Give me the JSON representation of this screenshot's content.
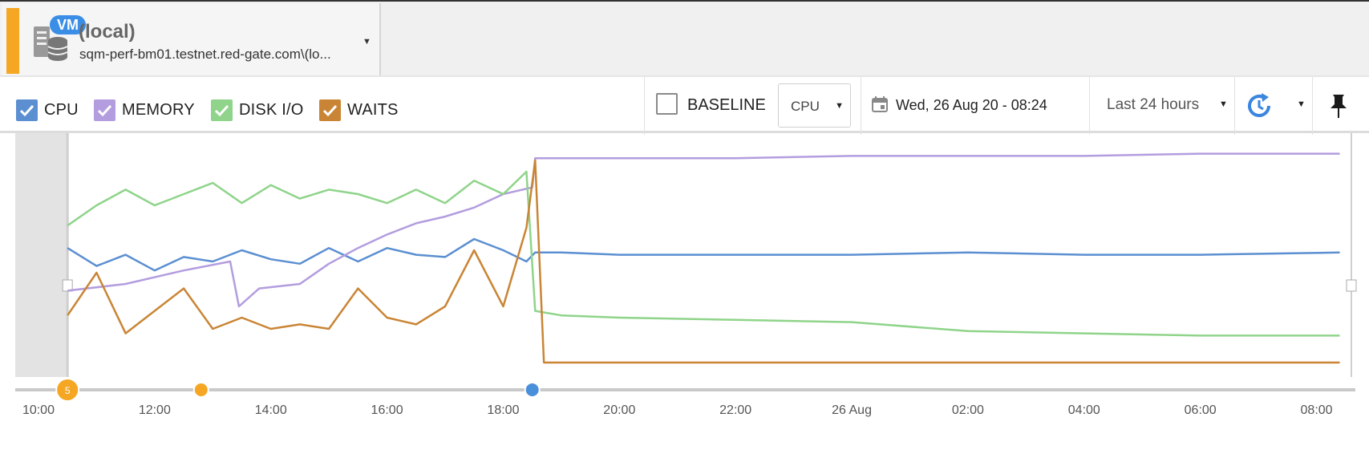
{
  "server": {
    "badge": "VM",
    "title": "(local)",
    "host": "sqm-perf-bm01.testnet.red-gate.com\\(lo...",
    "status_color": "#f5a623",
    "icon": "database-server-icon",
    "dropdown_icon": "caret-down-icon"
  },
  "toolbar": {
    "legend": [
      {
        "label": "CPU",
        "color": "#5b8fd1",
        "checked": true
      },
      {
        "label": "MEMORY",
        "color": "#b39ddf",
        "checked": true
      },
      {
        "label": "DISK I/O",
        "color": "#8fd48a",
        "checked": true
      },
      {
        "label": "WAITS",
        "color": "#c98535",
        "checked": true
      }
    ],
    "baseline": {
      "label": "BASELINE",
      "checked": false
    },
    "metric_select": "CPU",
    "date_label": "Wed, 26 Aug 20 - 08:24",
    "range_label": "Last 24 hours",
    "icons": [
      "calendar-icon",
      "auto-refresh-icon",
      "pin-icon"
    ]
  },
  "chart_data": {
    "type": "line",
    "x_ticks": [
      "10:00",
      "12:00",
      "14:00",
      "16:00",
      "18:00",
      "20:00",
      "22:00",
      "26 Aug",
      "02:00",
      "04:00",
      "06:00",
      "08:00"
    ],
    "x_domain_hours": [
      9.6,
      32.6
    ],
    "series": [
      {
        "name": "CPU",
        "color": "#5b8fd1",
        "segments": [
          [
            10.5,
            0.56
          ],
          [
            11.0,
            0.48
          ],
          [
            11.5,
            0.53
          ],
          [
            12.0,
            0.46
          ],
          [
            12.5,
            0.52
          ],
          [
            13.0,
            0.5
          ],
          [
            13.5,
            0.55
          ],
          [
            14.0,
            0.51
          ],
          [
            14.5,
            0.49
          ],
          [
            15.0,
            0.56
          ],
          [
            15.5,
            0.5
          ],
          [
            16.0,
            0.56
          ],
          [
            16.5,
            0.53
          ],
          [
            17.0,
            0.52
          ],
          [
            17.5,
            0.6
          ],
          [
            18.0,
            0.55
          ],
          [
            18.4,
            0.5
          ],
          [
            18.55,
            0.54
          ],
          [
            19.0,
            0.54
          ],
          [
            20.0,
            0.53
          ],
          [
            22.0,
            0.53
          ],
          [
            24.0,
            0.53
          ],
          [
            26.0,
            0.54
          ],
          [
            28.0,
            0.53
          ],
          [
            30.0,
            0.53
          ],
          [
            32.4,
            0.54
          ]
        ]
      },
      {
        "name": "MEMORY",
        "color": "#b39ddf",
        "segments": [
          [
            10.5,
            0.37
          ],
          [
            11.5,
            0.4
          ],
          [
            12.5,
            0.46
          ],
          [
            13.3,
            0.5
          ],
          [
            13.45,
            0.3
          ],
          [
            13.8,
            0.38
          ],
          [
            14.5,
            0.4
          ],
          [
            15.0,
            0.49
          ],
          [
            15.5,
            0.56
          ],
          [
            16.0,
            0.62
          ],
          [
            16.5,
            0.67
          ],
          [
            17.0,
            0.7
          ],
          [
            17.5,
            0.74
          ],
          [
            18.0,
            0.8
          ],
          [
            18.5,
            0.83
          ],
          [
            18.55,
            0.96
          ],
          [
            19.0,
            0.96
          ],
          [
            22.0,
            0.96
          ],
          [
            24.0,
            0.97
          ],
          [
            26.0,
            0.97
          ],
          [
            28.0,
            0.97
          ],
          [
            30.0,
            0.98
          ],
          [
            32.4,
            0.98
          ]
        ]
      },
      {
        "name": "DISK I/O",
        "color": "#8fd48a",
        "segments": [
          [
            10.5,
            0.66
          ],
          [
            11.0,
            0.75
          ],
          [
            11.5,
            0.82
          ],
          [
            12.0,
            0.75
          ],
          [
            12.5,
            0.8
          ],
          [
            13.0,
            0.85
          ],
          [
            13.5,
            0.76
          ],
          [
            14.0,
            0.84
          ],
          [
            14.5,
            0.78
          ],
          [
            15.0,
            0.82
          ],
          [
            15.5,
            0.8
          ],
          [
            16.0,
            0.76
          ],
          [
            16.5,
            0.82
          ],
          [
            17.0,
            0.76
          ],
          [
            17.5,
            0.86
          ],
          [
            18.0,
            0.8
          ],
          [
            18.4,
            0.9
          ],
          [
            18.55,
            0.28
          ],
          [
            19.0,
            0.26
          ],
          [
            20.0,
            0.25
          ],
          [
            22.0,
            0.24
          ],
          [
            24.0,
            0.23
          ],
          [
            26.0,
            0.19
          ],
          [
            28.0,
            0.18
          ],
          [
            30.0,
            0.17
          ],
          [
            32.4,
            0.17
          ]
        ]
      },
      {
        "name": "WAITS",
        "color": "#c98535",
        "segments": [
          [
            10.5,
            0.26
          ],
          [
            11.0,
            0.45
          ],
          [
            11.5,
            0.18
          ],
          [
            12.0,
            0.28
          ],
          [
            12.5,
            0.38
          ],
          [
            13.0,
            0.2
          ],
          [
            13.5,
            0.25
          ],
          [
            14.0,
            0.2
          ],
          [
            14.5,
            0.22
          ],
          [
            15.0,
            0.2
          ],
          [
            15.5,
            0.38
          ],
          [
            16.0,
            0.25
          ],
          [
            16.5,
            0.22
          ],
          [
            17.0,
            0.3
          ],
          [
            17.5,
            0.55
          ],
          [
            18.0,
            0.3
          ],
          [
            18.4,
            0.65
          ],
          [
            18.55,
            0.95
          ],
          [
            18.7,
            0.05
          ],
          [
            19.0,
            0.05
          ],
          [
            22.0,
            0.05
          ],
          [
            24.0,
            0.05
          ],
          [
            26.0,
            0.05
          ],
          [
            28.0,
            0.05
          ],
          [
            30.0,
            0.05
          ],
          [
            32.4,
            0.05
          ]
        ]
      }
    ],
    "y_range": [
      0,
      1
    ],
    "grid": false,
    "markers": [
      {
        "x": 10.5,
        "color": "#f5a623",
        "label": "5"
      },
      {
        "x": 12.8,
        "color": "#f5a623",
        "label": ""
      },
      {
        "x": 18.5,
        "color": "#4a8fd9",
        "label": ""
      }
    ],
    "shaded_range": [
      9.6,
      10.5
    ]
  }
}
